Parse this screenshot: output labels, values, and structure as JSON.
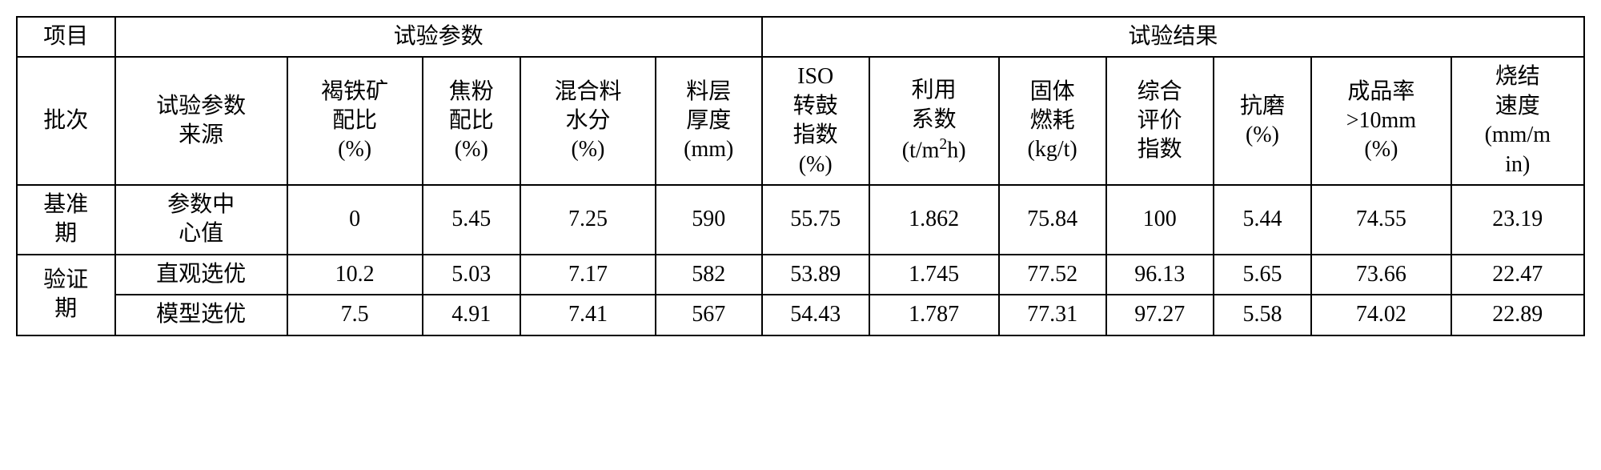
{
  "table": {
    "border_color": "#000000",
    "background_color": "#ffffff",
    "font_size": 28,
    "header_group_left_label": "项目",
    "header_group_params_label": "试验参数",
    "header_group_results_label": "试验结果",
    "columns": {
      "batch": "批次",
      "param_source": "试验参数来源",
      "limonite_ratio": "褐铁矿配比(%)",
      "coke_ratio": "焦粉配比(%)",
      "mix_moisture": "混合料水分(%)",
      "layer_thickness": "料层厚度(mm)",
      "iso_drum": "ISO转鼓指数(%)",
      "utilization": "利用系数(t/m²h)",
      "solid_fuel": "固体燃耗(kg/t)",
      "comp_index": "综合评价指数",
      "abrasion": "抗磨(%)",
      "yield_gt10": "成品率>10mm(%)",
      "sinter_speed": "烧结速度(mm/min)"
    },
    "rows": [
      {
        "batch": "基准期",
        "param_source": "参数中心值",
        "limonite_ratio": "0",
        "coke_ratio": "5.45",
        "mix_moisture": "7.25",
        "layer_thickness": "590",
        "iso_drum": "55.75",
        "utilization": "1.862",
        "solid_fuel": "75.84",
        "comp_index": "100",
        "abrasion": "5.44",
        "yield_gt10": "74.55",
        "sinter_speed": "23.19"
      },
      {
        "batch": "验证期",
        "param_source": "直观选优",
        "limonite_ratio": "10.2",
        "coke_ratio": "5.03",
        "mix_moisture": "7.17",
        "layer_thickness": "582",
        "iso_drum": "53.89",
        "utilization": "1.745",
        "solid_fuel": "77.52",
        "comp_index": "96.13",
        "abrasion": "5.65",
        "yield_gt10": "73.66",
        "sinter_speed": "22.47"
      },
      {
        "batch": "",
        "param_source": "模型选优",
        "limonite_ratio": "7.5",
        "coke_ratio": "4.91",
        "mix_moisture": "7.41",
        "layer_thickness": "567",
        "iso_drum": "54.43",
        "utilization": "1.787",
        "solid_fuel": "77.31",
        "comp_index": "97.27",
        "abrasion": "5.58",
        "yield_gt10": "74.02",
        "sinter_speed": "22.89"
      }
    ]
  },
  "labels": {
    "limonite_l1": "褐铁矿",
    "limonite_l2": "配比",
    "limonite_l3": "(%)",
    "coke_l1": "焦粉",
    "coke_l2": "配比",
    "coke_l3": "(%)",
    "moist_l1": "混合料",
    "moist_l2": "水分",
    "moist_l3": "(%)",
    "layer_l1": "料层",
    "layer_l2": "厚度",
    "layer_l3": "(mm)",
    "iso_l1": "ISO",
    "iso_l2": "转鼓",
    "iso_l3": "指数",
    "iso_l4": "(%)",
    "util_l1": "利用",
    "util_l2": "系数",
    "util_l3a": "(t/m",
    "util_l3b": "2",
    "util_l3c": "h)",
    "solid_l1": "固体",
    "solid_l2": "燃耗",
    "solid_l3": "(kg/t)",
    "comp_l1": "综合",
    "comp_l2": "评价",
    "comp_l3": "指数",
    "abr_l1": "抗磨",
    "abr_l2": "(%)",
    "yield_l1": "成品率",
    "yield_l2": ">10mm",
    "yield_l3": "(%)",
    "speed_l1": "烧结",
    "speed_l2": "速度",
    "speed_l3": "(mm/m",
    "speed_l4": "in)",
    "src_l1": "试验参数",
    "src_l2": "来源",
    "base_l1": "基准",
    "base_l2": "期",
    "center_l1": "参数中",
    "center_l2": "心值",
    "ver_l1": "验证",
    "ver_l2": "期"
  }
}
